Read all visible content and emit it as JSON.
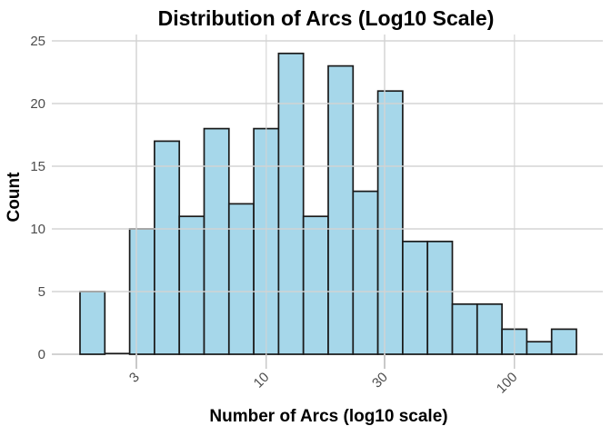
{
  "figure": {
    "title": "Distribution of Arcs (Log10 Scale)",
    "x_axis_label": "Number of Arcs (log10 scale)",
    "y_axis_label": "Count"
  },
  "chart_data": {
    "type": "bar",
    "subtype": "histogram",
    "title": "Distribution of Arcs (Log10 Scale)",
    "xlabel": "Number of Arcs (log10 scale)",
    "ylabel": "Count",
    "x_scale": "log10",
    "x_tick_values": [
      3,
      10,
      30,
      100
    ],
    "x_tick_labels": [
      "3",
      "10",
      "30",
      "100"
    ],
    "y_tick_values": [
      0,
      5,
      10,
      15,
      20,
      25
    ],
    "y_tick_labels": [
      "0",
      "5",
      "10",
      "15",
      "20",
      "25"
    ],
    "ylim": [
      0,
      25.5
    ],
    "xlim_log10": [
      0.147,
      2.356
    ],
    "grid": "major gridlines on, drawn over bars",
    "legend": "none",
    "bin_width_log10": 0.1,
    "bin_edges_log10": [
      0.25,
      0.35,
      0.45,
      0.55,
      0.65,
      0.75,
      0.85,
      0.95,
      1.05,
      1.15,
      1.25,
      1.35,
      1.45,
      1.55,
      1.65,
      1.75,
      1.85,
      1.95,
      2.05,
      2.15,
      2.25
    ],
    "bin_edges_values": [
      1.78,
      2.24,
      2.82,
      3.55,
      4.47,
      5.62,
      7.08,
      8.91,
      11.22,
      14.13,
      17.78,
      22.39,
      28.18,
      35.48,
      44.67,
      56.23,
      70.79,
      89.13,
      112.2,
      141.25,
      177.83
    ],
    "counts": [
      5,
      0,
      10,
      17,
      11,
      18,
      12,
      18,
      24,
      11,
      23,
      13,
      21,
      9,
      9,
      4,
      4,
      2,
      1,
      2
    ],
    "colors": {
      "bar_fill": "#A6D7EA",
      "bar_edge": "#1A1A1A",
      "gridline": "#D3D3D3",
      "gridline_over_bars": "rgba(211,211,211,0.72)",
      "axis_tick": "#C9C9C9",
      "tick_label": "#4D4D4D",
      "text": "#000000",
      "background": "#FFFFFF"
    }
  }
}
